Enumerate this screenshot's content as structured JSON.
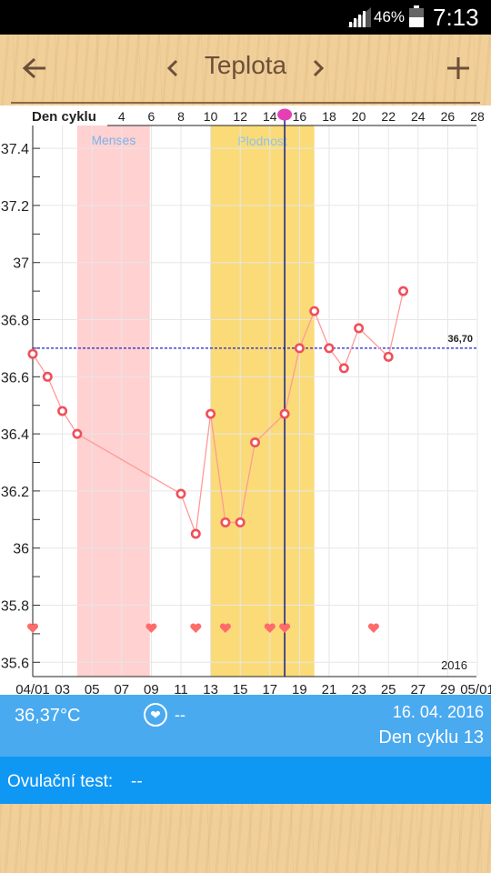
{
  "status_bar": {
    "battery": "46%",
    "time": "7:13"
  },
  "toolbar": {
    "title": "Teplota",
    "back_icon": "arrow-left-icon",
    "prev_icon": "chevron-left-icon",
    "next_icon": "chevron-right-icon",
    "add_icon": "plus-icon"
  },
  "chart_data": {
    "type": "line",
    "series_color": "#ff9a9a",
    "marker_color": "#f0505a",
    "ylim": [
      35.55,
      37.48
    ],
    "y_ticks": [
      35.6,
      35.8,
      36,
      36.2,
      36.4,
      36.6,
      36.8,
      37,
      37.2,
      37.4
    ],
    "y_tick_labels": [
      "35.6",
      "35.8",
      "36",
      "36.2",
      "36.4",
      "36.6",
      "36.8",
      "37",
      "37.2",
      "37.4"
    ],
    "date_ticks": [
      {
        "day": 1,
        "label": "04/01"
      },
      {
        "day": 3,
        "label": "03"
      },
      {
        "day": 5,
        "label": "05"
      },
      {
        "day": 7,
        "label": "07"
      },
      {
        "day": 9,
        "label": "09"
      },
      {
        "day": 11,
        "label": "11"
      },
      {
        "day": 13,
        "label": "13"
      },
      {
        "day": 15,
        "label": "15"
      },
      {
        "day": 17,
        "label": "17"
      },
      {
        "day": 19,
        "label": "19"
      },
      {
        "day": 21,
        "label": "21"
      },
      {
        "day": 23,
        "label": "23"
      },
      {
        "day": 25,
        "label": "25"
      },
      {
        "day": 27,
        "label": "27"
      },
      {
        "day": 29,
        "label": "29"
      },
      {
        "day": 31,
        "label": "05/01"
      }
    ],
    "cycle_axis_label": "Den cyklu",
    "cycle_ticks": [
      {
        "day": 7,
        "label": "4"
      },
      {
        "day": 9,
        "label": "6"
      },
      {
        "day": 11,
        "label": "8"
      },
      {
        "day": 13,
        "label": "10"
      },
      {
        "day": 15,
        "label": "12"
      },
      {
        "day": 17,
        "label": "14"
      },
      {
        "day": 19,
        "label": "16"
      },
      {
        "day": 21,
        "label": "18"
      },
      {
        "day": 23,
        "label": "20"
      },
      {
        "day": 25,
        "label": "22"
      },
      {
        "day": 27,
        "label": "24"
      },
      {
        "day": 29,
        "label": "26"
      },
      {
        "day": 31,
        "label": "28"
      }
    ],
    "points": [
      {
        "day": 1,
        "value": 36.68
      },
      {
        "day": 2,
        "value": 36.6
      },
      {
        "day": 3,
        "value": 36.48
      },
      {
        "day": 4,
        "value": 36.4
      },
      {
        "day": 11,
        "value": 36.19
      },
      {
        "day": 12,
        "value": 36.05
      },
      {
        "day": 13,
        "value": 36.47
      },
      {
        "day": 14,
        "value": 36.09
      },
      {
        "day": 15,
        "value": 36.09
      },
      {
        "day": 16,
        "value": 36.37
      },
      {
        "day": 18,
        "value": 36.47
      },
      {
        "day": 19,
        "value": 36.7
      },
      {
        "day": 20,
        "value": 36.83
      },
      {
        "day": 21,
        "value": 36.7
      },
      {
        "day": 22,
        "value": 36.63
      },
      {
        "day": 23,
        "value": 36.77
      },
      {
        "day": 25,
        "value": 36.67
      },
      {
        "day": 26,
        "value": 36.9
      }
    ],
    "coverline": {
      "value": 36.7,
      "label": "36,70",
      "color": "#1f1fd0"
    },
    "menses": {
      "label": "Menses",
      "start_day": 4.0,
      "end_day": 8.9,
      "color": "#ffd1d1"
    },
    "fertile": {
      "label": "Plodnost",
      "start_day": 13.0,
      "end_day": 20.0,
      "color": "#fadb78"
    },
    "ovulation_marker_day": 18,
    "ovulation_marker_color": "#e63fb5",
    "current_day_line": {
      "day": 18,
      "color": "#18188a"
    },
    "intercourse_days": [
      1,
      9,
      12,
      14,
      17,
      18,
      24
    ],
    "heart_color": "#ff6b6b",
    "year_label": "2016",
    "grid": true
  },
  "info": {
    "temperature": "36,37°C",
    "intercourse_value": "--",
    "date": "16. 04. 2016",
    "cycle_day": "Den cyklu 13",
    "ovulation_label": "Ovulační test:",
    "ovulation_value": "--"
  }
}
